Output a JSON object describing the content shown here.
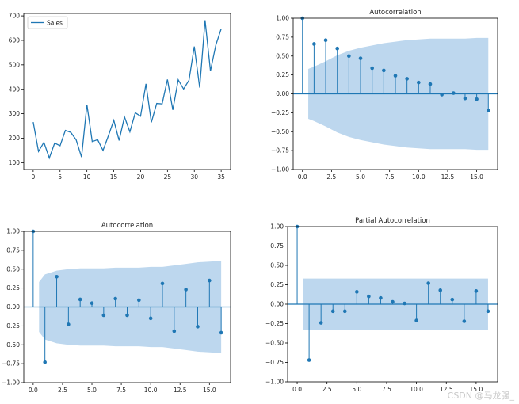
{
  "chart_data": [
    {
      "type": "line",
      "legend": [
        "Sales"
      ],
      "legend_loc": "upper-left",
      "color": "#1f77b4",
      "x": [
        0,
        1,
        2,
        3,
        4,
        5,
        6,
        7,
        8,
        9,
        10,
        11,
        12,
        13,
        14,
        15,
        16,
        17,
        18,
        19,
        20,
        21,
        22,
        23,
        24,
        25,
        26,
        27,
        28,
        29,
        30,
        31,
        32,
        33,
        34,
        35
      ],
      "series": [
        {
          "name": "Sales",
          "values": [
            266,
            146,
            183,
            119,
            180,
            169,
            232,
            224,
            193,
            123,
            337,
            186,
            194,
            150,
            210,
            273,
            191,
            287,
            226,
            304,
            290,
            422,
            265,
            342,
            340,
            440,
            316,
            439,
            401,
            437,
            575,
            407,
            682,
            475,
            581,
            647
          ]
        }
      ],
      "xticks": [
        "0",
        "5",
        "10",
        "15",
        "20",
        "25",
        "30",
        "35"
      ],
      "yticks": [
        "100",
        "200",
        "300",
        "400",
        "500",
        "600",
        "700"
      ],
      "xlim": [
        -1.75,
        36.75
      ],
      "ylim": [
        72,
        710
      ]
    },
    {
      "type": "stem",
      "title": "Autocorrelation",
      "color": "#1f77b4",
      "band_color": "#bdd7ee",
      "lags": [
        0,
        1,
        2,
        3,
        4,
        5,
        6,
        7,
        8,
        9,
        10,
        11,
        12,
        13,
        14,
        15,
        16
      ],
      "values": [
        1.0,
        0.66,
        0.71,
        0.6,
        0.5,
        0.47,
        0.34,
        0.31,
        0.24,
        0.2,
        0.15,
        0.13,
        -0.01,
        0.01,
        -0.06,
        -0.07,
        -0.22
      ],
      "conf_band": [
        0.33,
        0.36,
        0.43,
        0.51,
        0.57,
        0.61,
        0.64,
        0.67,
        0.69,
        0.71,
        0.72,
        0.73,
        0.73,
        0.73,
        0.73,
        0.74,
        0.74
      ],
      "band_start": 0.5,
      "xticks": [
        "0.0",
        "2.5",
        "5.0",
        "7.5",
        "10.0",
        "12.5",
        "15.0"
      ],
      "yticks": [
        "−1.00",
        "−0.75",
        "−0.50",
        "−0.25",
        "0.00",
        "0.25",
        "0.50",
        "0.75",
        "1.00"
      ],
      "xlim": [
        -0.8,
        16.8
      ],
      "ylim": [
        -1.0,
        1.0
      ]
    },
    {
      "type": "stem",
      "title": "Autocorrelation",
      "color": "#1f77b4",
      "band_color": "#bdd7ee",
      "lags": [
        0,
        1,
        2,
        3,
        4,
        5,
        6,
        7,
        8,
        9,
        10,
        11,
        12,
        13,
        14,
        15,
        16
      ],
      "values": [
        1.0,
        -0.73,
        0.4,
        -0.23,
        0.1,
        0.05,
        -0.11,
        0.11,
        -0.11,
        0.09,
        -0.15,
        0.31,
        -0.32,
        0.23,
        -0.26,
        0.35,
        -0.34
      ],
      "conf_band": [
        0.33,
        0.43,
        0.48,
        0.5,
        0.51,
        0.51,
        0.51,
        0.52,
        0.52,
        0.52,
        0.53,
        0.53,
        0.55,
        0.57,
        0.59,
        0.6,
        0.61
      ],
      "band_start": 0.5,
      "xticks": [
        "0.0",
        "2.5",
        "5.0",
        "7.5",
        "10.0",
        "12.5",
        "15.0"
      ],
      "yticks": [
        "−1.00",
        "−0.75",
        "−0.50",
        "−0.25",
        "0.00",
        "0.25",
        "0.50",
        "0.75",
        "1.00"
      ],
      "xlim": [
        -0.8,
        16.8
      ],
      "ylim": [
        -1.0,
        1.0
      ]
    },
    {
      "type": "stem",
      "title": "Partial Autocorrelation",
      "color": "#1f77b4",
      "band_color": "#bdd7ee",
      "lags": [
        0,
        1,
        2,
        3,
        4,
        5,
        6,
        7,
        8,
        9,
        10,
        11,
        12,
        13,
        14,
        15,
        16
      ],
      "values": [
        1.0,
        -0.72,
        -0.24,
        -0.09,
        -0.09,
        0.16,
        0.1,
        0.08,
        0.03,
        0.01,
        -0.21,
        0.27,
        0.18,
        0.06,
        -0.22,
        0.17,
        -0.09
      ],
      "conf_band": [
        0.33,
        0.33,
        0.33,
        0.33,
        0.33,
        0.33,
        0.33,
        0.33,
        0.33,
        0.33,
        0.33,
        0.33,
        0.33,
        0.33,
        0.33,
        0.33,
        0.33
      ],
      "band_start": 0.5,
      "xticks": [
        "0.0",
        "2.5",
        "5.0",
        "7.5",
        "10.0",
        "12.5",
        "15.0"
      ],
      "yticks": [
        "−1.00",
        "−0.75",
        "−0.50",
        "−0.25",
        "0.00",
        "0.25",
        "0.50",
        "0.75",
        "1.00"
      ],
      "xlim": [
        -0.8,
        16.8
      ],
      "ylim": [
        -1.0,
        1.0
      ]
    }
  ],
  "watermark": "CSDN @马龙强_"
}
